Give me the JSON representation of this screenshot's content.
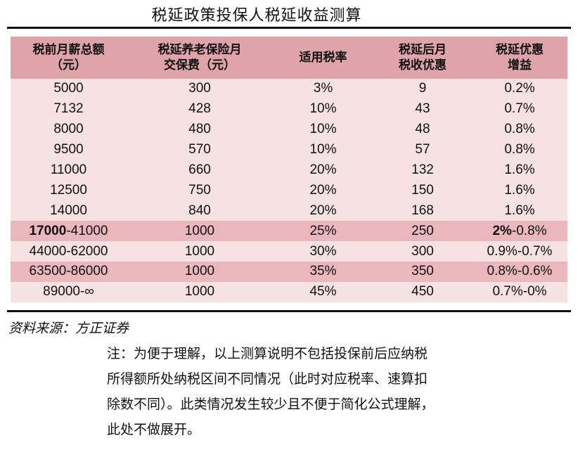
{
  "title": "税延政策投保人税延收益测算",
  "headers": [
    [
      "税前月薪总额",
      "（元）"
    ],
    [
      "税延养老保险月",
      "交保费（元）"
    ],
    [
      "适用税率"
    ],
    [
      "税延后月",
      "税收优惠"
    ],
    [
      "税延优惠",
      "增益"
    ]
  ],
  "rows": [
    {
      "salary": "5000",
      "premium": "300",
      "rate": "3%",
      "benefit": "9",
      "gain": "0.2%"
    },
    {
      "salary": "7132",
      "premium": "428",
      "rate": "10%",
      "benefit": "43",
      "gain": "0.7%"
    },
    {
      "salary": "8000",
      "premium": "480",
      "rate": "10%",
      "benefit": "48",
      "gain": "0.8%"
    },
    {
      "salary": "9500",
      "premium": "570",
      "rate": "10%",
      "benefit": "57",
      "gain": "0.8%"
    },
    {
      "salary": "11000",
      "premium": "660",
      "rate": "20%",
      "benefit": "132",
      "gain": "1.6%"
    },
    {
      "salary": "12500",
      "premium": "750",
      "rate": "20%",
      "benefit": "150",
      "gain": "1.6%"
    },
    {
      "salary": "14000",
      "premium": "840",
      "rate": "20%",
      "benefit": "168",
      "gain": "1.6%"
    },
    {
      "salary_bold": "17000",
      "salary_rest": "-41000",
      "premium": "1000",
      "rate": "25%",
      "benefit": "250",
      "gain_bold": "2%",
      "gain_rest": "-0.8%"
    },
    {
      "salary": "44000-62000",
      "premium": "1000",
      "rate": "30%",
      "benefit": "300",
      "gain": "0.9%-0.7%"
    },
    {
      "salary": "63500-86000",
      "premium": "1000",
      "rate": "35%",
      "benefit": "350",
      "gain": "0.8%-0.6%"
    },
    {
      "salary": "89000-∞",
      "premium": "1000",
      "rate": "45%",
      "benefit": "450",
      "gain": "0.7%-0%"
    }
  ],
  "source": "资料来源：方正证券",
  "note_lines": [
    "注：为便于理解，以上测算说明不包括投保前后应纳税",
    "所得额所处纳税区间不同情况（此时对应税率、速算扣",
    "除数不同）。此类情况发生较少且不便于简化公式理解，",
    "此处不做展开。"
  ],
  "colors": {
    "header_bg": "#dfa3aa",
    "row_light": "#f6e1e3",
    "row_dark": "#e9b7bc"
  }
}
